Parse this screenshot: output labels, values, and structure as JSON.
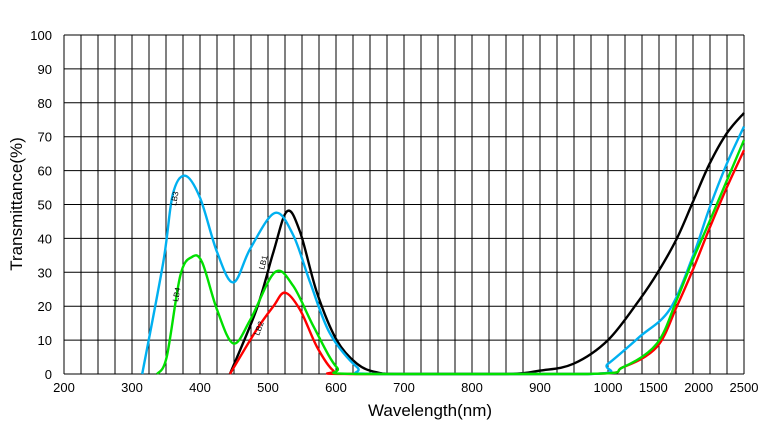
{
  "chart_data": {
    "type": "line",
    "title": "",
    "xlabel": "Wavelength(nm)",
    "ylabel": "Transmittance(%)",
    "xlim": [
      200,
      2500
    ],
    "ylim": [
      0,
      100
    ],
    "x_scale": "piecewise: linear 200-1000 (100 nm per label), compressed 1000-2500 (500 nm per label)",
    "grid": true,
    "x_ticks": [
      "200",
      "300",
      "400",
      "500",
      "600",
      "700",
      "800",
      "900",
      "1000",
      "1500",
      "2000",
      "2500"
    ],
    "y_ticks": [
      "0",
      "10",
      "20",
      "30",
      "40",
      "50",
      "60",
      "70",
      "80",
      "90",
      "100"
    ],
    "series": [
      {
        "name": "LB1",
        "color": "#000000",
        "points": [
          [
            444,
            0
          ],
          [
            483,
            19
          ],
          [
            508,
            36
          ],
          [
            528,
            48
          ],
          [
            547,
            42
          ],
          [
            572,
            24
          ],
          [
            601,
            10
          ],
          [
            631,
            3
          ],
          [
            660,
            0.5
          ],
          [
            700,
            0
          ],
          [
            850,
            0
          ],
          [
            900,
            1
          ],
          [
            949,
            3
          ],
          [
            1000,
            10
          ],
          [
            1350,
            22
          ],
          [
            1550,
            30
          ],
          [
            1760,
            40
          ],
          [
            1940,
            51
          ],
          [
            2120,
            62
          ],
          [
            2310,
            71
          ],
          [
            2500,
            77
          ]
        ]
      },
      {
        "name": "LB2",
        "color": "#ff0000",
        "points": [
          [
            444,
            0
          ],
          [
            483,
            13
          ],
          [
            508,
            20
          ],
          [
            525,
            24
          ],
          [
            547,
            19
          ],
          [
            572,
            8
          ],
          [
            596,
            1
          ],
          [
            620,
            0
          ],
          [
            970,
            0
          ],
          [
            1165,
            2
          ],
          [
            1540,
            8
          ],
          [
            1760,
            20
          ],
          [
            1940,
            31
          ],
          [
            2120,
            43
          ],
          [
            2310,
            55
          ],
          [
            2500,
            66
          ]
        ]
      },
      {
        "name": "LB3",
        "color": "#00b0f0",
        "points": [
          [
            315,
            0
          ],
          [
            346,
            33
          ],
          [
            360,
            53
          ],
          [
            378,
            58.5
          ],
          [
            400,
            52
          ],
          [
            425,
            36
          ],
          [
            449,
            27
          ],
          [
            474,
            37
          ],
          [
            510,
            47.5
          ],
          [
            537,
            41
          ],
          [
            562,
            27
          ],
          [
            591,
            12
          ],
          [
            631,
            2
          ],
          [
            660,
            0
          ],
          [
            975,
            0
          ],
          [
            1000,
            3
          ],
          [
            1350,
            11
          ],
          [
            1680,
            19
          ],
          [
            1940,
            35
          ],
          [
            2120,
            49
          ],
          [
            2310,
            62
          ],
          [
            2500,
            73
          ]
        ]
      },
      {
        "name": "LB4",
        "color": "#00e000",
        "points": [
          [
            337,
            0
          ],
          [
            351,
            5
          ],
          [
            371,
            29
          ],
          [
            388,
            34.5
          ],
          [
            403,
            33
          ],
          [
            425,
            19
          ],
          [
            449,
            9
          ],
          [
            474,
            16
          ],
          [
            510,
            30
          ],
          [
            537,
            26
          ],
          [
            567,
            14
          ],
          [
            601,
            2
          ],
          [
            630,
            0
          ],
          [
            970,
            0
          ],
          [
            1165,
            2
          ],
          [
            1540,
            9
          ],
          [
            1760,
            22
          ],
          [
            1940,
            34
          ],
          [
            2120,
            45
          ],
          [
            2310,
            57
          ],
          [
            2500,
            69
          ]
        ]
      }
    ],
    "annotations": [
      "LB3",
      "LB4",
      "LB1",
      "LB2"
    ]
  }
}
